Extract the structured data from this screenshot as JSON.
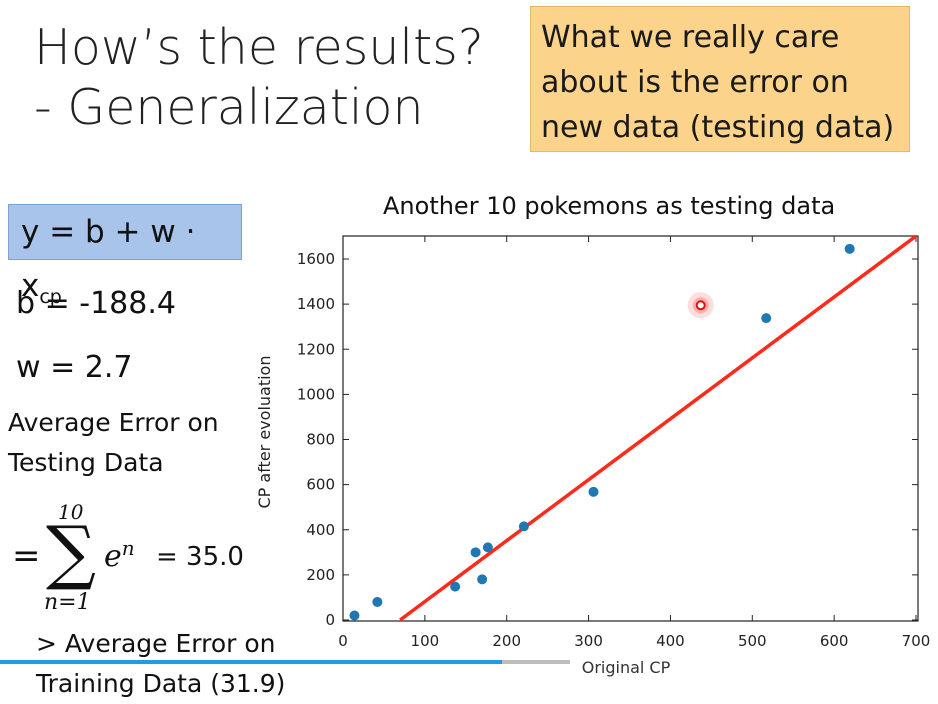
{
  "slide": {
    "title_line1": "How’s the results?",
    "title_line2": "- Generalization",
    "callout": [
      "What we really care",
      "about is the error on",
      "new data (testing data)"
    ],
    "formula": {
      "prefix": "y = b + w · x",
      "subscript": "cp"
    },
    "b_text": "b = -188.4",
    "w_text": "w = 2.7",
    "avg_error_lines": [
      "Average Error on",
      "Testing Data"
    ],
    "sum": {
      "eq": "=",
      "upper": "10",
      "lower": "n=1",
      "term": "e",
      "term_sup": "n",
      "result": "= 35.0"
    },
    "training_lines": [
      "> Average Error on",
      "Training Data (31.9)"
    ],
    "progress": 0.88
  },
  "chart_data": {
    "type": "scatter",
    "title": "Another 10 pokemons as testing data",
    "xlabel": "Original CP",
    "ylabel": "CP after evoluation",
    "xlim": [
      0,
      700
    ],
    "ylim": [
      0,
      1700
    ],
    "xticks": [
      0,
      100,
      200,
      300,
      400,
      500,
      600,
      700
    ],
    "yticks": [
      0,
      200,
      400,
      600,
      800,
      1000,
      1200,
      1400,
      1600
    ],
    "points": [
      {
        "x": 14,
        "y": 20
      },
      {
        "x": 42,
        "y": 80
      },
      {
        "x": 137,
        "y": 148
      },
      {
        "x": 162,
        "y": 300
      },
      {
        "x": 170,
        "y": 180
      },
      {
        "x": 177,
        "y": 322
      },
      {
        "x": 221,
        "y": 415
      },
      {
        "x": 306,
        "y": 568
      },
      {
        "x": 517,
        "y": 1338
      },
      {
        "x": 619,
        "y": 1645
      }
    ],
    "highlight_point": {
      "x": 437,
      "y": 1395
    },
    "line": {
      "b": -188.4,
      "w": 2.7,
      "color": "#ff2a1a"
    },
    "point_color": "#1f77b4",
    "grid": false
  }
}
